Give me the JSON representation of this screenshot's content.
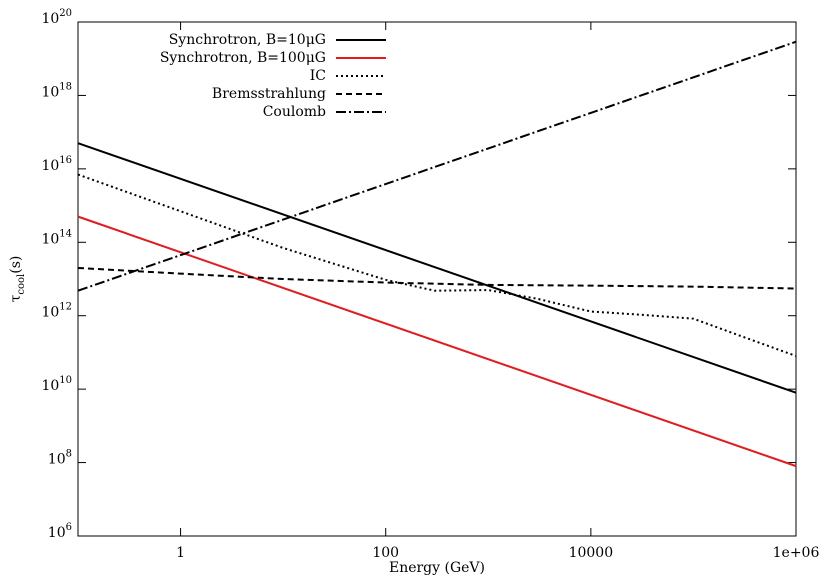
{
  "chart_data": {
    "type": "line",
    "xlabel": "Energy (GeV)",
    "ylabel": "τ_{cool}(s)",
    "log_x": true,
    "log_y": true,
    "xlim": [
      0.1,
      1000000
    ],
    "ylim": [
      1000000,
      100000000000000000000
    ],
    "xticks": [
      1,
      100,
      10000,
      {
        "value": 1000000,
        "label": "1e+06"
      }
    ],
    "yticks": [
      {
        "value": 1000000,
        "label": "10^{6}"
      },
      {
        "value": 100000000,
        "label": "10^{8}"
      },
      {
        "value": 10000000000,
        "label": "10^{10}"
      },
      {
        "value": 1000000000000,
        "label": "10^{12}"
      },
      {
        "value": 100000000000000,
        "label": "10^{14}"
      },
      {
        "value": 10000000000000000,
        "label": "10^{16}"
      },
      {
        "value": 1000000000000000000,
        "label": "10^{18}"
      },
      {
        "value": 100000000000000000000,
        "label": "10^{20}"
      }
    ],
    "legend": "top-left",
    "series": [
      {
        "name": "Synchrotron, B=10μG",
        "color": "#000000",
        "dash": "solid",
        "x": [
          0.1,
          1000000
        ],
        "values": [
          50000000000000000,
          8000000000
        ]
      },
      {
        "name": "Synchrotron, B=100μG",
        "color": "#e41a1c",
        "dash": "solid",
        "x": [
          0.1,
          1000000
        ],
        "values": [
          500000000000000,
          80000000
        ]
      },
      {
        "name": "IC",
        "color": "#000000",
        "dash": "dotted",
        "x": [
          0.1,
          1,
          10,
          100,
          300,
          1000,
          3000,
          10000,
          30000,
          100000,
          300000,
          1000000
        ],
        "values": [
          7000000000000000,
          700000000000000,
          70000000000000,
          9500000000000,
          4800000000000,
          5000000000000,
          2900000000000,
          1300000000000,
          1070000000000,
          830000000000,
          270000000000,
          80000000000
        ]
      },
      {
        "name": "Bremsstrahlung",
        "color": "#000000",
        "dash": "dashed",
        "x": [
          0.1,
          1,
          10,
          100,
          1000,
          10000,
          100000,
          1000000
        ],
        "values": [
          20000000000000,
          14000000000000,
          10000000000000,
          8000000000000,
          6900000000000,
          6600000000000,
          6200000000000,
          5500000000000
        ]
      },
      {
        "name": "Coulomb",
        "color": "#000000",
        "dash": "dashdot",
        "x": [
          0.1,
          1000000
        ],
        "values": [
          4800000000000,
          29000000000000000000
        ]
      }
    ]
  }
}
